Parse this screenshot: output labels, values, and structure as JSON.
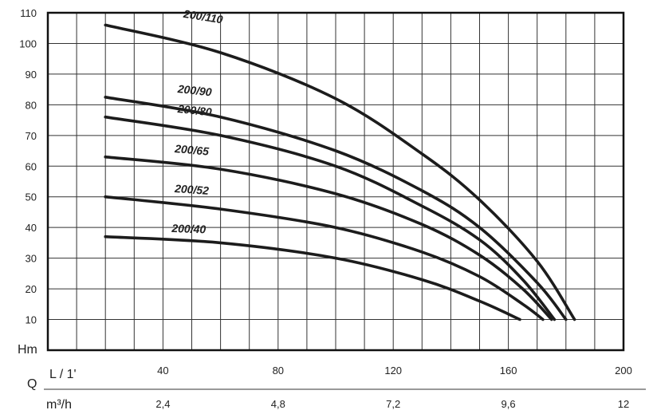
{
  "chart_data": {
    "type": "line",
    "title": "",
    "ylabel": "Hm",
    "x_axis_primary": {
      "label_symbol": "Q",
      "unit": "L / 1'",
      "range": [
        0,
        200
      ],
      "ticks": [
        "40",
        "80",
        "120",
        "160",
        "200"
      ]
    },
    "x_axis_secondary": {
      "unit": "m³/h",
      "ticks": [
        "2,4",
        "4,8",
        "7,2",
        "9,6",
        "12"
      ]
    },
    "ylim": [
      0,
      110
    ],
    "y_ticks": [
      "10",
      "20",
      "30",
      "40",
      "50",
      "60",
      "70",
      "80",
      "90",
      "100",
      "110"
    ],
    "grid": true,
    "series": [
      {
        "name": "200/110",
        "x": [
          20,
          60,
          100,
          130,
          150,
          170,
          183
        ],
        "y": [
          106,
          97,
          82,
          64,
          49,
          29,
          10
        ]
      },
      {
        "name": "200/90",
        "x": [
          20,
          60,
          100,
          130,
          150,
          170,
          180
        ],
        "y": [
          82.5,
          76,
          65,
          52,
          40,
          22,
          10
        ]
      },
      {
        "name": "200/80",
        "x": [
          20,
          60,
          100,
          130,
          150,
          165,
          176
        ],
        "y": [
          76,
          70,
          60,
          47,
          36,
          23,
          10
        ]
      },
      {
        "name": "200/65",
        "x": [
          20,
          60,
          100,
          130,
          150,
          165,
          175
        ],
        "y": [
          63,
          59,
          51,
          41,
          31,
          20,
          10
        ]
      },
      {
        "name": "200/52",
        "x": [
          20,
          60,
          100,
          130,
          150,
          165,
          172
        ],
        "y": [
          50,
          46,
          40,
          32,
          24,
          15,
          10
        ]
      },
      {
        "name": "200/40",
        "x": [
          20,
          60,
          100,
          130,
          150,
          164
        ],
        "y": [
          37,
          35,
          30,
          23,
          16,
          10
        ]
      }
    ],
    "curve_labels": [
      "200/110",
      "200/90",
      "200/80",
      "200/65",
      "200/52",
      "200/40"
    ]
  }
}
